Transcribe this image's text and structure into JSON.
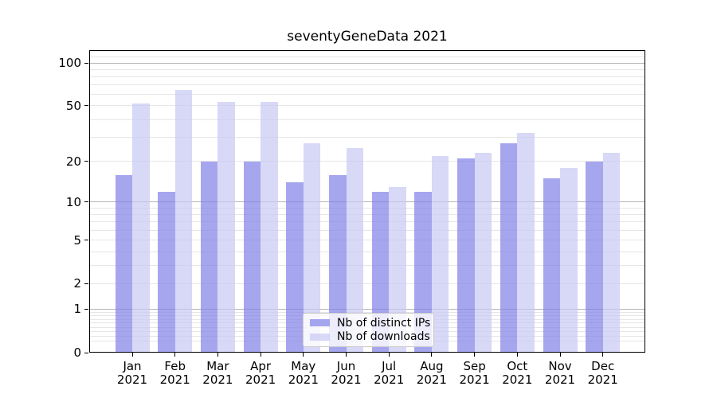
{
  "chart_data": {
    "type": "bar",
    "title": "seventyGeneData 2021",
    "categories": [
      {
        "month": "Jan",
        "year": "2021"
      },
      {
        "month": "Feb",
        "year": "2021"
      },
      {
        "month": "Mar",
        "year": "2021"
      },
      {
        "month": "Apr",
        "year": "2021"
      },
      {
        "month": "May",
        "year": "2021"
      },
      {
        "month": "Jun",
        "year": "2021"
      },
      {
        "month": "Jul",
        "year": "2021"
      },
      {
        "month": "Aug",
        "year": "2021"
      },
      {
        "month": "Sep",
        "year": "2021"
      },
      {
        "month": "Oct",
        "year": "2021"
      },
      {
        "month": "Nov",
        "year": "2021"
      },
      {
        "month": "Dec",
        "year": "2021"
      }
    ],
    "series": [
      {
        "name": "Nb of distinct IPs",
        "color": "#8080e8",
        "values": [
          16,
          12,
          20,
          20,
          14,
          16,
          12,
          12,
          21,
          27,
          15,
          20
        ]
      },
      {
        "name": "Nb of downloads",
        "color": "#c8c8f4",
        "values": [
          52,
          65,
          53,
          53,
          27,
          25,
          13,
          22,
          23,
          32,
          18,
          23
        ]
      }
    ],
    "bar_alpha": 0.7,
    "yscale": "log10(1+x)",
    "yticks": [
      0,
      1,
      2,
      5,
      10,
      20,
      50,
      100
    ],
    "ylim": [
      0,
      122
    ],
    "xlabel": "",
    "ylabel": "",
    "grid": "horizontal",
    "legend_position": "lower center"
  },
  "colors": {
    "background": "#ffffff",
    "bar_distinct_ips": "#8080e8",
    "bar_downloads": "#c8c8f4",
    "grid_major": "#b5b5b5",
    "grid_minor": "#e6e6e6",
    "spine": "#000000",
    "text": "#000000"
  }
}
